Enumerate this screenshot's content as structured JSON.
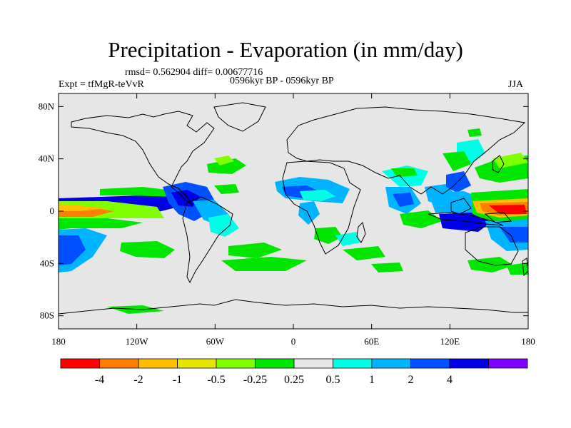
{
  "title": "Precipitation - Evaporation (in mm/day)",
  "stats": "rmsd= 0.562904 diff= 0.00677716",
  "expt": "Expt = tfMgR-teVvR",
  "period": "0596kyr BP - 0596kyr BP",
  "season": "JJA",
  "axes": {
    "y_ticks": [
      {
        "label": "80N",
        "lat": 80
      },
      {
        "label": "40N",
        "lat": 40
      },
      {
        "label": "0",
        "lat": 0
      },
      {
        "label": "40S",
        "lat": -40
      },
      {
        "label": "80S",
        "lat": -80
      }
    ],
    "x_ticks": [
      {
        "label": "180",
        "lon": -180
      },
      {
        "label": "120W",
        "lon": -120
      },
      {
        "label": "60W",
        "lon": -60
      },
      {
        "label": "0",
        "lon": 0
      },
      {
        "label": "60E",
        "lon": 60
      },
      {
        "label": "120E",
        "lon": 120
      },
      {
        "label": "180",
        "lon": 180
      }
    ],
    "lat_range": [
      -90,
      90
    ],
    "lon_range": [
      -180,
      180
    ]
  },
  "colorbar": {
    "colors": [
      "#ff0000",
      "#ff8000",
      "#ffbf00",
      "#e6e600",
      "#80ff00",
      "#00e600",
      "#e6e6e6",
      "#00ffe6",
      "#00b4ff",
      "#0050ff",
      "#0000e6",
      "#8000ff"
    ],
    "labels": [
      "-4",
      "-2",
      "-1",
      "-0.5",
      "-0.25",
      "0.25",
      "0.5",
      "1",
      "2",
      "4"
    ]
  },
  "colors": {
    "background": "#e6e6e6",
    "coast": "#000000"
  }
}
